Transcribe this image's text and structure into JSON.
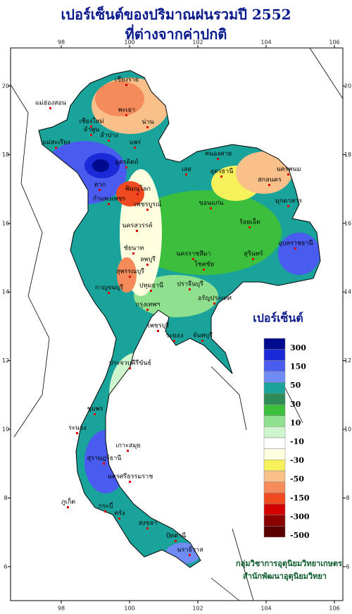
{
  "header": {
    "title": "เปอร์เซ็นต์ของปริมาณฝนรวมปี 2552",
    "subtitle": "ที่ต่างจากค่าปกติ"
  },
  "map": {
    "xticks": [
      98,
      100,
      102,
      104,
      106
    ],
    "yticks": [
      20,
      18,
      16,
      14,
      12,
      10,
      8,
      6
    ],
    "stations": [
      "เชียงราย",
      "แม่ฮ่องสอน",
      "พะเยา",
      "เชียงใหม่",
      "น่าน",
      "ลำพูน",
      "ลำปาง",
      "แพร่",
      "แม่สะเรียง",
      "อุตรดิตถ์",
      "ตาก",
      "พิษณุโลก",
      "กำแพงเพชร",
      "เพชรบูรณ์",
      "นครสวรรค์",
      "ชัยนาท",
      "ลพบุรี",
      "สุพรรณบุรี",
      "กาญจนบุรี",
      "ปทุมธานี",
      "กรุงเทพฯ",
      "เพชรบุรี",
      "ประจวบคีรีขันธ์",
      "ชุมพร",
      "ระนอง",
      "เกาะสมุย",
      "สุราษฎร์ธานี",
      "นครศรีธรรมราช",
      "ภูเก็ต",
      "กระบี่",
      "ตรัง",
      "สงขลา",
      "ปัตตานี",
      "นราธิวาส",
      "หนองคาย",
      "อุดรธานี",
      "เลย",
      "นครพนม",
      "สกลนคร",
      "มุกดาหาร",
      "ขอนแก่น",
      "ร้อยเอ็ด",
      "อุบลราชธานี",
      "สุรินทร์",
      "นครราชสีมา",
      "โชคชัย",
      "ปราจีนบุรี",
      "อรัญประเทศ",
      "ระยอง",
      "จันทบุรี"
    ]
  },
  "legend": {
    "title": "เปอร์เซ็นต์",
    "colors": [
      "#000a8c",
      "#1b2ad8",
      "#4a5cf0",
      "#6f8cf5",
      "#1aa39a",
      "#2e8b57",
      "#3cbf3c",
      "#8fe08f",
      "#cff5cf",
      "#ffffff",
      "#ffffe0",
      "#f7f25c",
      "#f9c08a",
      "#f58b5a",
      "#f04a20",
      "#d40000",
      "#8b0000",
      "#5a0000"
    ],
    "labels": [
      300,
      150,
      50,
      30,
      10,
      -10,
      -30,
      -50,
      -150,
      -300,
      -500
    ]
  },
  "footer": {
    "line1": "กลุ่มวิชาการอุตุนิยมวิทยาเกษตร",
    "line2": "สำนักพัฒนาอุตุนิยมวิทยา"
  }
}
